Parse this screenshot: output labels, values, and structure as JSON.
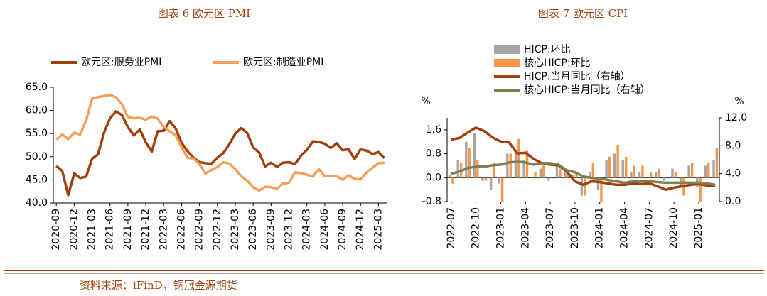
{
  "chart_data": [
    {
      "type": "line",
      "title": "图表 6 欧元区 PMI",
      "legend": "top",
      "categories": [
        "2020-09",
        null,
        null,
        "2020-12",
        null,
        null,
        "2021-03",
        null,
        null,
        "2021-06",
        null,
        null,
        "2021-09",
        null,
        null,
        "2021-12",
        null,
        null,
        "2022-03",
        null,
        null,
        "2022-06",
        null,
        null,
        "2022-09",
        null,
        null,
        "2022-12",
        null,
        null,
        "2023-03",
        null,
        null,
        "2023-06",
        null,
        null,
        "2023-09",
        null,
        null,
        "2023-12",
        null,
        null,
        "2024-03",
        null,
        null,
        "2024-06",
        null,
        null,
        "2024-09",
        null,
        null,
        "2024-12",
        null,
        null,
        "2025-03",
        null
      ],
      "ylim": [
        40,
        65
      ],
      "yticks": [
        {
          "value": 40,
          "label": "40.0"
        },
        {
          "value": 45,
          "label": "45.0"
        },
        {
          "value": 50,
          "label": "50.0"
        },
        {
          "value": 55,
          "label": "55.0"
        },
        {
          "value": 60,
          "label": "60.0"
        },
        {
          "value": 65,
          "label": "65.0"
        }
      ],
      "series": [
        {
          "name": "欧元区:服务业PMI",
          "color": "#a0410d",
          "values": [
            48.0,
            46.9,
            41.7,
            46.4,
            45.4,
            45.7,
            49.6,
            50.5,
            55.2,
            58.3,
            59.8,
            59.0,
            56.4,
            54.6,
            55.9,
            53.1,
            51.1,
            55.5,
            55.6,
            57.7,
            56.1,
            53.0,
            51.2,
            49.8,
            48.8,
            48.6,
            48.5,
            49.8,
            50.8,
            52.7,
            55.0,
            56.2,
            55.1,
            52.0,
            50.9,
            47.9,
            48.7,
            47.8,
            48.7,
            48.8,
            48.4,
            50.2,
            51.5,
            53.3,
            53.2,
            52.8,
            51.9,
            52.9,
            51.4,
            51.6,
            49.5,
            51.6,
            51.3,
            50.6,
            51.0,
            49.7
          ]
        },
        {
          "name": "欧元区:制造业PMI",
          "color": "#f5a05a",
          "values": [
            53.7,
            54.8,
            53.8,
            55.2,
            54.8,
            57.9,
            62.5,
            62.9,
            63.1,
            63.4,
            62.8,
            61.4,
            58.6,
            58.3,
            58.4,
            58.0,
            58.7,
            58.2,
            56.5,
            55.5,
            54.6,
            52.1,
            49.8,
            49.6,
            48.4,
            46.4,
            47.1,
            47.8,
            48.8,
            48.5,
            47.3,
            45.8,
            44.8,
            43.4,
            42.7,
            43.5,
            43.4,
            43.1,
            44.2,
            44.4,
            46.6,
            46.5,
            46.1,
            45.7,
            47.3,
            45.8,
            45.8,
            45.8,
            45.0,
            46.0,
            45.2,
            45.1,
            46.6,
            47.6,
            48.6,
            48.7
          ]
        }
      ]
    },
    {
      "type": "bar",
      "title": "图表 7 欧元区 CPI",
      "legend": "top-left",
      "y_label": "%",
      "y2_label": "%",
      "categories": [
        "2022-07",
        null,
        null,
        "2022-10",
        null,
        null,
        "2023-01",
        null,
        null,
        "2023-04",
        null,
        null,
        "2023-07",
        null,
        null,
        "2023-10",
        null,
        null,
        "2024-01",
        null,
        null,
        "2024-04",
        null,
        null,
        "2024-07",
        null,
        null,
        "2024-10",
        null,
        null,
        "2025-01",
        null,
        null
      ],
      "ylim": [
        -0.8,
        2.0
      ],
      "yticks": [
        {
          "value": -0.8,
          "label": "-0.8"
        },
        {
          "value": 0,
          "label": "0.0"
        },
        {
          "value": 0.8,
          "label": "0.8"
        },
        {
          "value": 1.6,
          "label": "1.6"
        }
      ],
      "y2lim": [
        0,
        12
      ],
      "y2ticks": [
        {
          "value": 0,
          "label": "0.0"
        },
        {
          "value": 4,
          "label": "4.0"
        },
        {
          "value": 8,
          "label": "8.0"
        },
        {
          "value": 12,
          "label": "12.0"
        }
      ],
      "series": [
        {
          "name": "HICP:环比",
          "type": "bar",
          "color": "#a6a6a6",
          "values": [
            0.1,
            0.6,
            1.2,
            1.5,
            -0.1,
            -0.4,
            -0.2,
            0.8,
            0.9,
            0.6,
            0.0,
            0.3,
            -0.1,
            0.5,
            0.3,
            0.1,
            -0.6,
            0.2,
            -0.4,
            0.6,
            0.8,
            0.6,
            0.2,
            0.2,
            0.0,
            0.2,
            -0.1,
            0.3,
            -0.3,
            0.4,
            -0.3,
            0.4,
            0.6
          ]
        },
        {
          "name": "核心HICP:环比",
          "type": "bar",
          "color": "#f79646",
          "values": [
            -0.2,
            0.5,
            1.0,
            0.6,
            -0.1,
            0.5,
            -0.8,
            0.8,
            1.3,
            0.9,
            0.2,
            0.4,
            0.0,
            0.3,
            0.2,
            0.2,
            -0.6,
            0.5,
            -0.8,
            0.7,
            1.1,
            0.7,
            0.4,
            0.4,
            0.2,
            0.3,
            0.0,
            0.2,
            -0.6,
            0.5,
            -0.8,
            0.5,
            1.0
          ]
        },
        {
          "name": "HICP:当月同比（右轴）",
          "type": "line",
          "axis": "y2",
          "color": "#a0410d",
          "values": [
            8.9,
            9.1,
            9.9,
            10.6,
            10.1,
            9.2,
            8.6,
            8.5,
            6.9,
            7.0,
            6.1,
            5.5,
            5.3,
            5.2,
            4.3,
            2.9,
            2.4,
            2.9,
            2.8,
            2.6,
            2.4,
            2.4,
            2.6,
            2.5,
            2.6,
            2.2,
            1.7,
            2.0,
            2.2,
            2.4,
            2.5,
            2.3,
            2.2
          ]
        },
        {
          "name": "核心HICP:当月同比（右轴）",
          "type": "line",
          "axis": "y2",
          "color": "#7f7f50",
          "values": [
            4.0,
            4.3,
            4.8,
            5.0,
            5.0,
            5.2,
            5.3,
            5.6,
            5.7,
            5.6,
            5.3,
            5.5,
            5.5,
            5.3,
            4.5,
            4.2,
            3.6,
            3.4,
            3.3,
            3.1,
            2.9,
            2.7,
            2.9,
            2.9,
            2.9,
            2.8,
            2.7,
            2.7,
            2.7,
            2.7,
            2.7,
            2.6,
            2.4
          ]
        }
      ]
    }
  ],
  "source": "资料来源：iFinD，铜冠金源期货"
}
